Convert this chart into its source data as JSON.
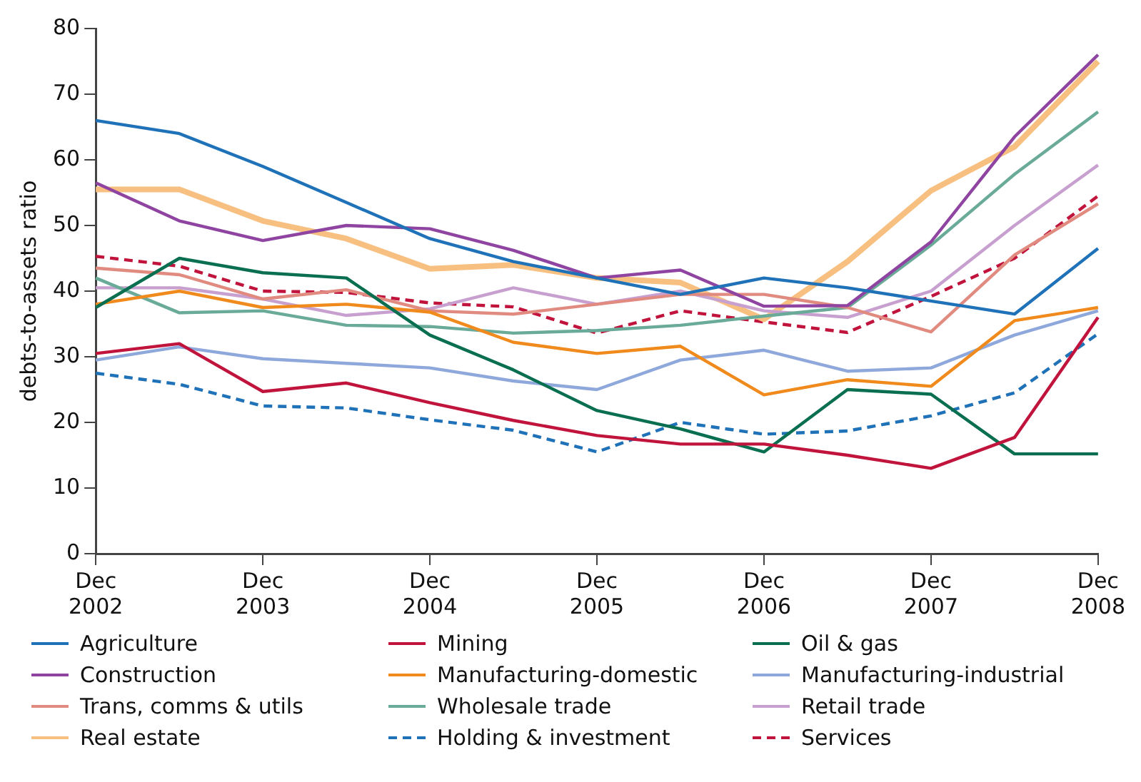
{
  "chart_data": {
    "type": "line",
    "ylabel": "debts-to-assets ratio",
    "categories": [
      "Dec 2002",
      null,
      "Dec 2003",
      null,
      "Dec 2004",
      null,
      "Dec 2005",
      null,
      "Dec 2006",
      null,
      "Dec 2007",
      null,
      "Dec 2008"
    ],
    "ylim": [
      0,
      80
    ],
    "yticks": [
      0,
      10,
      20,
      30,
      40,
      50,
      60,
      70,
      80
    ],
    "grid": false,
    "legend": "bottom",
    "marker": "none",
    "series": [
      {
        "name": "Agriculture",
        "color": "#1f72b8",
        "values": [
          66,
          64,
          59,
          53.5,
          48,
          44.5,
          42,
          39.5,
          42,
          40.5,
          38.5,
          36.5,
          46.5
        ]
      },
      {
        "name": "Mining",
        "color": "#c0143c",
        "values": [
          30.5,
          32,
          24.7,
          26,
          23,
          20.3,
          18,
          16.7,
          16.7,
          15,
          13,
          17.7,
          36
        ]
      },
      {
        "name": "Oil & gas",
        "color": "#0a6e50",
        "values": [
          37.5,
          45,
          42.8,
          42,
          33.3,
          28,
          21.8,
          19,
          15.5,
          25,
          24.3,
          15.2,
          15.2
        ]
      },
      {
        "name": "Construction",
        "color": "#8e44a0",
        "values": [
          56.5,
          50.7,
          47.7,
          50,
          49.5,
          46.2,
          42,
          43.2,
          37.7,
          37.8,
          47.5,
          63.5,
          76
        ]
      },
      {
        "name": "Manufacturing-domestic",
        "color": "#f08a1c",
        "values": [
          38,
          40,
          37.5,
          38,
          36.8,
          32.2,
          30.5,
          31.6,
          24.2,
          26.5,
          25.5,
          35.5,
          37.5
        ]
      },
      {
        "name": "Manufacturing-industrial",
        "color": "#8fa8dc",
        "values": [
          29.5,
          31.5,
          29.7,
          29,
          28.3,
          26.3,
          25,
          29.5,
          31,
          27.8,
          28.3,
          33.3,
          37
        ]
      },
      {
        "name": "Trans, comms & utils",
        "color": "#e08a80",
        "values": [
          43.5,
          42.5,
          38.8,
          40.2,
          37,
          36.5,
          38,
          39.5,
          39.5,
          37.5,
          33.8,
          45.5,
          53.3
        ]
      },
      {
        "name": "Wholesale trade",
        "color": "#6aaa98",
        "values": [
          42,
          36.7,
          37,
          34.8,
          34.6,
          33.6,
          34,
          34.8,
          36.2,
          37.5,
          47,
          57.8,
          67.3
        ]
      },
      {
        "name": "Retail trade",
        "color": "#c8a0d0",
        "values": [
          40.5,
          40.5,
          38.8,
          36.3,
          37.3,
          40.5,
          38,
          40,
          37,
          36,
          40,
          50,
          59.2
        ]
      },
      {
        "name": "Real estate",
        "color": "#f8c080",
        "values": [
          55.5,
          55.5,
          50.7,
          48,
          43.4,
          44,
          42,
          41.3,
          35.7,
          44.5,
          55.3,
          62,
          75
        ]
      },
      {
        "name": "Holding & investment",
        "color": "#1f72b8",
        "line_style": "dashed",
        "values": [
          27.5,
          25.8,
          22.5,
          22.2,
          20.4,
          18.8,
          15.5,
          20,
          18.2,
          18.7,
          21,
          24.5,
          33.5
        ]
      },
      {
        "name": "Services",
        "color": "#c0143c",
        "line_style": "dashed",
        "values": [
          45.3,
          43.8,
          40,
          39.8,
          38.2,
          37.6,
          33.6,
          37,
          35.3,
          33.7,
          39.2,
          45,
          54.5
        ]
      }
    ]
  }
}
